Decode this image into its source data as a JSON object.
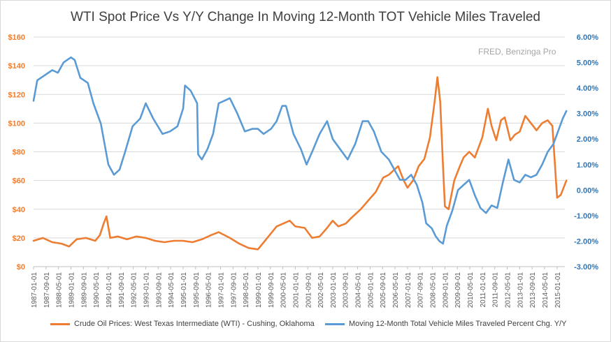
{
  "chart_data": {
    "type": "line",
    "title": "WTI Spot Price Vs Y/Y Change In Moving 12-Month TOT Vehicle Miles Traveled",
    "annotation": "FRED, Benzinga Pro",
    "x_tick_labels": [
      "1987-01-01",
      "1987-09-01",
      "1988-05-01",
      "1989-01-01",
      "1989-09-01",
      "1990-05-01",
      "1991-01-01",
      "1991-09-01",
      "1992-05-01",
      "1993-01-01",
      "1993-09-01",
      "1994-05-01",
      "1995-01-01",
      "1995-09-01",
      "1996-05-01",
      "1997-01-01",
      "1997-09-01",
      "1998-05-01",
      "1999-01-01",
      "1999-09-01",
      "2000-05-01",
      "2001-01-01",
      "2001-09-01",
      "2002-05-01",
      "2003-01-01",
      "2003-09-01",
      "2004-05-01",
      "2005-01-01",
      "2005-09-01",
      "2006-05-01",
      "2007-01-01",
      "2007-09-01",
      "2008-05-01",
      "2009-01-01",
      "2009-09-01",
      "2010-05-01",
      "2011-01-01",
      "2011-09-01",
      "2012-05-01",
      "2013-01-01",
      "2013-09-01",
      "2014-05-01",
      "2015-01-01"
    ],
    "x_range": [
      "1987-01-01",
      "2015-06-01"
    ],
    "left_axis": {
      "ticks": [
        "$0",
        "$20",
        "$40",
        "$60",
        "$80",
        "$100",
        "$120",
        "$140",
        "$160"
      ],
      "range": [
        0,
        160
      ],
      "color": "#ed7d31"
    },
    "right_axis": {
      "ticks": [
        "-3.00%",
        "-2.00%",
        "-1.00%",
        "0.00%",
        "1.00%",
        "2.00%",
        "3.00%",
        "4.00%",
        "5.00%",
        "6.00%"
      ],
      "range": [
        -3,
        6
      ],
      "color": "#2e75b6"
    },
    "grid": true,
    "legend_position": "bottom",
    "series": [
      {
        "name": "Crude Oil Prices: West Texas Intermediate (WTI) - Cushing, Oklahoma",
        "axis": "left",
        "color": "#ed7d31",
        "x": [
          1987.0,
          1987.5,
          1988.0,
          1988.5,
          1988.9,
          1989.3,
          1989.8,
          1990.3,
          1990.55,
          1990.75,
          1990.9,
          1991.1,
          1991.5,
          1992.0,
          1992.5,
          1993.0,
          1993.5,
          1994.0,
          1994.5,
          1995.0,
          1995.5,
          1996.0,
          1996.5,
          1996.9,
          1997.5,
          1998.0,
          1998.5,
          1999.0,
          1999.5,
          2000.0,
          2000.7,
          2001.0,
          2001.5,
          2001.9,
          2002.3,
          2002.7,
          2003.0,
          2003.3,
          2003.7,
          2004.0,
          2004.5,
          2004.9,
          2005.3,
          2005.7,
          2006.0,
          2006.5,
          2006.8,
          2007.0,
          2007.3,
          2007.6,
          2007.9,
          2008.2,
          2008.45,
          2008.6,
          2008.75,
          2008.9,
          2009.0,
          2009.2,
          2009.5,
          2009.8,
          2010.0,
          2010.3,
          2010.6,
          2011.0,
          2011.3,
          2011.5,
          2011.75,
          2012.0,
          2012.2,
          2012.5,
          2012.75,
          2013.0,
          2013.3,
          2013.6,
          2013.9,
          2014.2,
          2014.5,
          2014.75,
          2015.0,
          2015.2,
          2015.5
        ],
        "y": [
          18,
          20,
          17,
          16,
          14,
          19,
          20,
          18,
          22,
          30,
          35,
          20,
          21,
          19,
          21,
          20,
          18,
          17,
          18,
          18,
          17,
          19,
          22,
          24,
          20,
          16,
          13,
          12,
          20,
          28,
          32,
          28,
          27,
          20,
          21,
          27,
          32,
          28,
          30,
          34,
          40,
          46,
          52,
          62,
          64,
          70,
          60,
          55,
          60,
          70,
          75,
          90,
          115,
          132,
          115,
          70,
          42,
          40,
          60,
          70,
          76,
          80,
          76,
          90,
          110,
          98,
          88,
          102,
          104,
          88,
          92,
          94,
          105,
          100,
          95,
          100,
          102,
          98,
          48,
          50,
          60
        ]
      },
      {
        "name": "Moving 12-Month Total Vehicle Miles Traveled Percent Chg. Y/Y",
        "axis": "right",
        "color": "#5b9bd5",
        "x": [
          1987.0,
          1987.2,
          1987.6,
          1988.0,
          1988.3,
          1988.6,
          1989.0,
          1989.2,
          1989.5,
          1989.9,
          1990.2,
          1990.6,
          1991.0,
          1991.3,
          1991.6,
          1991.9,
          1992.3,
          1992.7,
          1993.0,
          1993.4,
          1993.9,
          1994.3,
          1994.7,
          1995.0,
          1995.1,
          1995.4,
          1995.75,
          1995.8,
          1996.0,
          1996.3,
          1996.6,
          1996.9,
          1997.2,
          1997.5,
          1997.9,
          1998.3,
          1998.7,
          1999.0,
          1999.3,
          1999.7,
          2000.0,
          2000.3,
          2000.5,
          2000.9,
          2001.3,
          2001.6,
          2001.9,
          2002.3,
          2002.7,
          2003.0,
          2003.4,
          2003.8,
          2004.2,
          2004.6,
          2004.9,
          2005.2,
          2005.6,
          2006.0,
          2006.3,
          2006.6,
          2006.9,
          2007.2,
          2007.5,
          2007.8,
          2008.0,
          2008.3,
          2008.5,
          2008.7,
          2008.9,
          2009.1,
          2009.4,
          2009.7,
          2010.0,
          2010.3,
          2010.6,
          2010.9,
          2011.2,
          2011.5,
          2011.8,
          2012.1,
          2012.4,
          2012.7,
          2013.0,
          2013.3,
          2013.6,
          2013.9,
          2014.2,
          2014.5,
          2014.8,
          2015.0,
          2015.3,
          2015.5
        ],
        "y": [
          3.5,
          4.3,
          4.5,
          4.7,
          4.6,
          5.0,
          5.2,
          5.1,
          4.4,
          4.2,
          3.4,
          2.6,
          1.0,
          0.6,
          0.8,
          1.5,
          2.5,
          2.8,
          3.4,
          2.8,
          2.2,
          2.3,
          2.5,
          3.2,
          4.1,
          3.9,
          3.4,
          1.4,
          1.2,
          1.6,
          2.2,
          3.4,
          3.5,
          3.6,
          3.0,
          2.3,
          2.4,
          2.4,
          2.2,
          2.4,
          2.7,
          3.3,
          3.3,
          2.2,
          1.6,
          1.0,
          1.5,
          2.2,
          2.7,
          2.0,
          1.6,
          1.2,
          1.8,
          2.7,
          2.7,
          2.3,
          1.5,
          1.2,
          0.8,
          0.4,
          0.4,
          0.6,
          0.2,
          -0.5,
          -1.3,
          -1.5,
          -1.8,
          -2.0,
          -2.1,
          -1.4,
          -0.8,
          0.0,
          0.2,
          0.4,
          -0.2,
          -0.7,
          -0.9,
          -0.6,
          -0.7,
          0.3,
          1.2,
          0.4,
          0.3,
          0.6,
          0.5,
          0.6,
          1.0,
          1.5,
          1.8,
          2.2,
          2.8,
          3.1
        ]
      }
    ]
  }
}
